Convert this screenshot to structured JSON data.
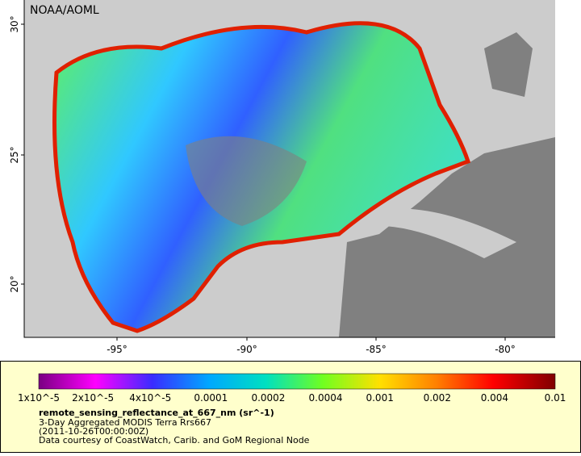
{
  "watermark": "NOAA/AOML",
  "lat_ticks": [
    "30°",
    "25°",
    "20°"
  ],
  "lon_ticks": [
    "-95°",
    "-90°",
    "-85°",
    "-80°"
  ],
  "colorbar": {
    "labels": [
      "1x10^-5",
      "2x10^-5",
      "4x10^-5",
      "0.0001",
      "0.0002",
      "0.0004",
      "0.001",
      "0.002",
      "0.004",
      "0.01"
    ]
  },
  "legend": {
    "variable": "remote_sensing_reflectance_at_667_nm (sr^-1)",
    "lines": [
      "3-Day Aggregated MODIS Terra Rrs667",
      "(2011-10-26T00:00:00Z)",
      "Data courtesy of CoastWatch, Carib. and GoM Regional Node"
    ]
  }
}
